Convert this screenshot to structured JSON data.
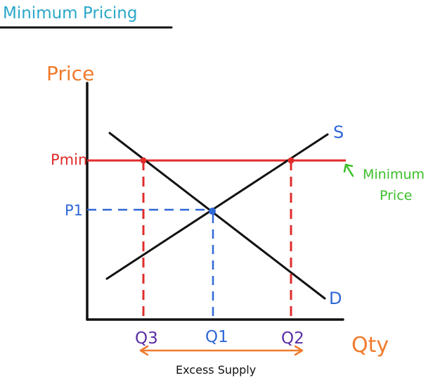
{
  "title": "Minimum Pricing",
  "axes": {
    "y_label": "Price",
    "x_label": "Qty"
  },
  "curves": {
    "supply_label": "S",
    "demand_label": "D"
  },
  "price_labels": {
    "p_min": "Pmin",
    "p_1": "P1"
  },
  "quantity_labels": {
    "q_3": "Q3",
    "q_1": "Q1",
    "q_2": "Q2"
  },
  "annotations": {
    "minimum_price_line1": "Minimum",
    "minimum_price_line2": "Price",
    "excess_supply": "Excess Supply"
  },
  "colors": {
    "title": "#2aa7c9",
    "axis_labels": "#f07b2c",
    "min_price_line": "#e02b2b",
    "equilibrium": "#2f67d6",
    "quantity_labels_purple": "#5a2ea6",
    "min_price_annotation": "#3bbf2a",
    "curves": "#111111",
    "excess_supply_arrow": "#f07b2c"
  }
}
